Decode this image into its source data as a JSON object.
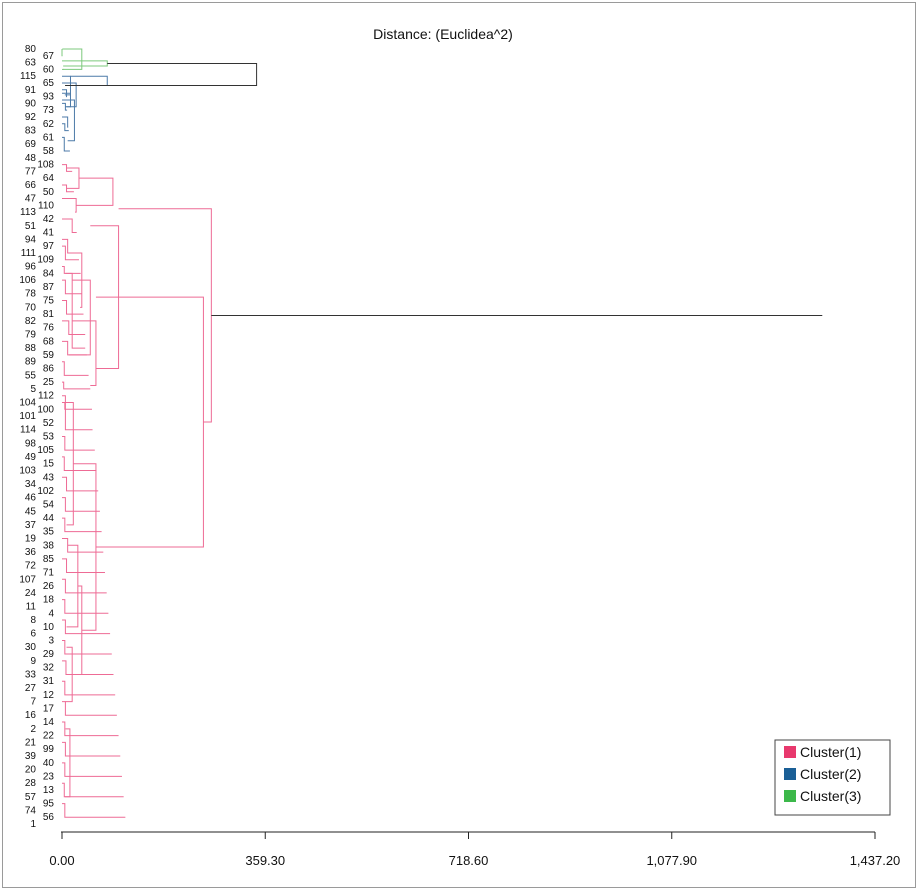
{
  "chart_data": {
    "type": "dendrogram",
    "title": "Distance: (Euclidea^2)",
    "orientation": "horizontal",
    "xlim": [
      0,
      1437.2
    ],
    "x_ticks": [
      "0.00",
      "359.30",
      "718.60",
      "1,077.90",
      "1,437.20"
    ],
    "x_tick_values": [
      0,
      359.3,
      718.6,
      1077.9,
      1437.2
    ],
    "leaves": [
      80,
      67,
      63,
      60,
      115,
      65,
      91,
      93,
      90,
      73,
      92,
      62,
      83,
      61,
      69,
      58,
      48,
      108,
      77,
      64,
      66,
      50,
      47,
      110,
      113,
      42,
      51,
      41,
      94,
      97,
      111,
      109,
      96,
      84,
      106,
      87,
      78,
      75,
      70,
      81,
      82,
      76,
      79,
      68,
      88,
      59,
      89,
      86,
      55,
      25,
      5,
      112,
      104,
      100,
      101,
      52,
      114,
      53,
      98,
      105,
      49,
      15,
      103,
      43,
      34,
      102,
      46,
      54,
      45,
      44,
      37,
      35,
      19,
      38,
      36,
      85,
      72,
      71,
      107,
      26,
      24,
      18,
      11,
      4,
      8,
      10,
      6,
      3,
      30,
      29,
      9,
      32,
      33,
      31,
      27,
      12,
      7,
      17,
      16,
      14,
      2,
      22,
      21,
      99,
      39,
      40,
      20,
      23,
      28,
      13,
      57,
      95,
      74,
      56,
      1
    ],
    "leaf_cluster": [
      3,
      3,
      3,
      3,
      2,
      2,
      2,
      2,
      2,
      2,
      2,
      2,
      2,
      2,
      2,
      2,
      1,
      1,
      1,
      1,
      1,
      1,
      1,
      1,
      1,
      1,
      1,
      1,
      1,
      1,
      1,
      1,
      1,
      1,
      1,
      1,
      1,
      1,
      1,
      1,
      1,
      1,
      1,
      1,
      1,
      1,
      1,
      1,
      1,
      1,
      1,
      1,
      1,
      1,
      1,
      1,
      1,
      1,
      1,
      1,
      1,
      1,
      1,
      1,
      1,
      1,
      1,
      1,
      1,
      1,
      1,
      1,
      1,
      1,
      1,
      1,
      1,
      1,
      1,
      1,
      1,
      1,
      1,
      1,
      1,
      1,
      1,
      1,
      1,
      1,
      1,
      1,
      1,
      1,
      1,
      1,
      1,
      1,
      1,
      1,
      1,
      1,
      1,
      1,
      1,
      1,
      1,
      1,
      1,
      1,
      1,
      1,
      1,
      1,
      1
    ],
    "merges": [
      {
        "from": [
          0,
          3
        ],
        "to": [
          3,
          3
        ],
        "height": 0,
        "cluster": 3
      },
      {
        "from": [
          0,
          0
        ],
        "to": [
          1,
          1
        ],
        "height": 0,
        "cluster": 3
      },
      {
        "from": [
          0.5,
          0
        ],
        "to": [
          2,
          3
        ],
        "height": 35,
        "cluster": 3
      },
      {
        "from": [
          0,
          1.75
        ],
        "to": [
          2,
          2.5
        ],
        "height": 80,
        "cluster": 3
      },
      {
        "from": [
          0,
          11
        ],
        "to": [
          12,
          12
        ],
        "height": 5,
        "cluster": 2
      },
      {
        "from": [
          0,
          10
        ],
        "to": [
          11,
          11.5
        ],
        "height": 10,
        "cluster": 2
      },
      {
        "from": [
          0,
          6
        ],
        "to": [
          7,
          7
        ],
        "height": 8,
        "cluster": 2
      },
      {
        "from": [
          0,
          8
        ],
        "to": [
          9,
          9
        ],
        "height": 6,
        "cluster": 2
      },
      {
        "from": [
          0,
          6.5
        ],
        "to": [
          8,
          8.5
        ],
        "height": 15,
        "cluster": 2
      },
      {
        "from": [
          0,
          13
        ],
        "to": [
          14,
          15
        ],
        "height": 4,
        "cluster": 2
      },
      {
        "from": [
          0,
          7.5
        ],
        "to": [
          10,
          13.5
        ],
        "height": 22,
        "cluster": 2
      },
      {
        "from": [
          0,
          5
        ],
        "to": [
          6,
          8.5
        ],
        "height": 25,
        "cluster": 2
      },
      {
        "from": [
          0,
          4
        ],
        "to": [
          5,
          6.75
        ],
        "height": 15,
        "cluster": 2
      },
      {
        "from": [
          15,
          4
        ],
        "to": [
          16,
          5.375
        ],
        "height": 80,
        "cluster": 2
      },
      {
        "from": [
          80,
          2.125
        ],
        "to": [
          5.375,
          5.375
        ],
        "height": 344,
        "cluster": 0
      },
      {
        "from": [
          0,
          17
        ],
        "to": [
          18,
          18
        ],
        "height": 8,
        "cluster": 1
      },
      {
        "from": [
          0,
          20
        ],
        "to": [
          21,
          21
        ],
        "height": 8,
        "cluster": 1
      },
      {
        "from": [
          8,
          17.5
        ],
        "to": [
          8,
          20.5
        ],
        "height": 30,
        "cluster": 1
      },
      {
        "from": [
          0,
          22
        ],
        "to": [
          23,
          24
        ],
        "height": 25,
        "cluster": 1
      },
      {
        "from": [
          30,
          19
        ],
        "to": [
          25,
          23
        ],
        "height": 90,
        "cluster": 1
      },
      {
        "from": [
          0,
          25
        ],
        "to": [
          26,
          27
        ],
        "height": 18,
        "cluster": 1
      },
      {
        "from": [
          0,
          29
        ],
        "to": [
          30,
          31
        ],
        "height": 6,
        "cluster": 1
      },
      {
        "from": [
          0,
          28
        ],
        "to": [
          29,
          30
        ],
        "height": 10,
        "cluster": 1
      },
      {
        "from": [
          0,
          32
        ],
        "to": [
          33,
          33
        ],
        "height": 4,
        "cluster": 1
      },
      {
        "from": [
          0,
          34
        ],
        "to": [
          35,
          36
        ],
        "height": 6,
        "cluster": 1
      },
      {
        "from": [
          0,
          37
        ],
        "to": [
          38,
          39
        ],
        "height": 8,
        "cluster": 1
      },
      {
        "from": [
          0,
          40
        ],
        "to": [
          41,
          42
        ],
        "height": 12,
        "cluster": 1
      },
      {
        "from": [
          0,
          43
        ],
        "to": [
          44,
          45
        ],
        "height": 10,
        "cluster": 1
      },
      {
        "from": [
          0,
          46
        ],
        "to": [
          47,
          48
        ],
        "height": 4,
        "cluster": 1
      },
      {
        "from": [
          0,
          49
        ],
        "to": [
          50,
          50
        ],
        "height": 3,
        "cluster": 1
      },
      {
        "from": [
          10,
          30
        ],
        "to": [
          32,
          38
        ],
        "height": 35,
        "cluster": 1
      },
      {
        "from": [
          6,
          33
        ],
        "to": [
          41,
          44
        ],
        "height": 18,
        "cluster": 1
      },
      {
        "from": [
          18,
          34
        ],
        "to": [
          12,
          45
        ],
        "height": 50,
        "cluster": 1
      },
      {
        "from": [
          18,
          40
        ],
        "to": [
          50,
          49.5
        ],
        "height": 60,
        "cluster": 1
      },
      {
        "from": [
          50,
          26
        ],
        "to": [
          60,
          47
        ],
        "height": 100,
        "cluster": 1
      },
      {
        "from": [
          0,
          52
        ],
        "to": [
          53,
          53
        ],
        "height": 5,
        "cluster": 1
      },
      {
        "from": [
          0,
          51
        ],
        "to": [
          54,
          56
        ],
        "height": 6,
        "cluster": 1
      },
      {
        "from": [
          0,
          57
        ],
        "to": [
          58,
          59
        ],
        "height": 5,
        "cluster": 1
      },
      {
        "from": [
          0,
          60
        ],
        "to": [
          61,
          62
        ],
        "height": 4,
        "cluster": 1
      },
      {
        "from": [
          0,
          63
        ],
        "to": [
          64,
          65
        ],
        "height": 8,
        "cluster": 1
      },
      {
        "from": [
          0,
          66
        ],
        "to": [
          67,
          68
        ],
        "height": 6,
        "cluster": 1
      },
      {
        "from": [
          0,
          69
        ],
        "to": [
          70,
          71
        ],
        "height": 5,
        "cluster": 1
      },
      {
        "from": [
          0,
          72
        ],
        "to": [
          73,
          74
        ],
        "height": 10,
        "cluster": 1
      },
      {
        "from": [
          0,
          75
        ],
        "to": [
          76,
          77
        ],
        "height": 8,
        "cluster": 1
      },
      {
        "from": [
          0,
          78
        ],
        "to": [
          79,
          80
        ],
        "height": 6,
        "cluster": 1
      },
      {
        "from": [
          0,
          81
        ],
        "to": [
          82,
          83
        ],
        "height": 5,
        "cluster": 1
      },
      {
        "from": [
          0,
          84
        ],
        "to": [
          85,
          86
        ],
        "height": 6,
        "cluster": 1
      },
      {
        "from": [
          0,
          87
        ],
        "to": [
          88,
          89
        ],
        "height": 5,
        "cluster": 1
      },
      {
        "from": [
          0,
          90
        ],
        "to": [
          91,
          92
        ],
        "height": 7,
        "cluster": 1
      },
      {
        "from": [
          0,
          93
        ],
        "to": [
          94,
          95
        ],
        "height": 5,
        "cluster": 1
      },
      {
        "from": [
          0,
          96
        ],
        "to": [
          97,
          98
        ],
        "height": 6,
        "cluster": 1
      },
      {
        "from": [
          0,
          99
        ],
        "to": [
          100,
          101
        ],
        "height": 5,
        "cluster": 1
      },
      {
        "from": [
          0,
          102
        ],
        "to": [
          103,
          104
        ],
        "height": 6,
        "cluster": 1
      },
      {
        "from": [
          0,
          105
        ],
        "to": [
          106,
          107
        ],
        "height": 5,
        "cluster": 1
      },
      {
        "from": [
          0,
          108
        ],
        "to": [
          109,
          110
        ],
        "height": 4,
        "cluster": 1
      },
      {
        "from": [
          0,
          111
        ],
        "to": [
          112,
          113
        ],
        "height": 5,
        "cluster": 1
      },
      {
        "from": [
          6,
          52
        ],
        "to": [
          8,
          70
        ],
        "height": 20,
        "cluster": 1
      },
      {
        "from": [
          10,
          73
        ],
        "to": [
          8,
          85
        ],
        "height": 28,
        "cluster": 1
      },
      {
        "from": [
          8,
          88
        ],
        "to": [
          6,
          96
        ],
        "height": 18,
        "cluster": 1
      },
      {
        "from": [
          6,
          100
        ],
        "to": [
          5,
          110
        ],
        "height": 14,
        "cluster": 1
      },
      {
        "from": [
          28,
          79
        ],
        "to": [
          18,
          92
        ],
        "height": 35,
        "cluster": 1
      },
      {
        "from": [
          20,
          61
        ],
        "to": [
          35,
          85.5
        ],
        "height": 60,
        "cluster": 1
      },
      {
        "from": [
          60,
          36.5
        ],
        "to": [
          60,
          73.25
        ],
        "height": 250,
        "cluster": 1
      },
      {
        "from": [
          250,
          54.875
        ],
        "to": [
          100,
          23.5
        ],
        "height": 264,
        "cluster": 1
      },
      {
        "from": [
          264,
          39.2
        ],
        "to": [
          344,
          39.2
        ],
        "height": 1344,
        "cluster": 0
      }
    ]
  },
  "legend": {
    "placement": "bottom-right",
    "items": [
      {
        "label": "Cluster(1)",
        "color": "#e8386d"
      },
      {
        "label": "Cluster(2)",
        "color": "#1a5f96"
      },
      {
        "label": "Cluster(3)",
        "color": "#3cb84a"
      }
    ]
  },
  "colors": {
    "cluster1_line": "#ee6b95",
    "cluster2_line": "#4c7aa8",
    "cluster3_line": "#7cc97c",
    "root_line": "#333333"
  }
}
